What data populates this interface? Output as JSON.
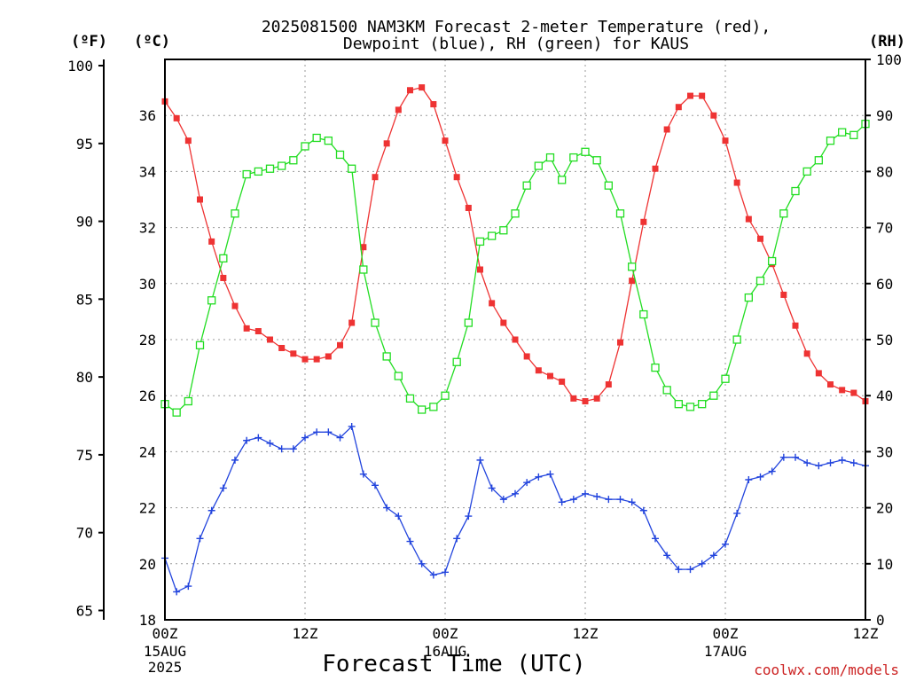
{
  "chart_data": {
    "type": "line",
    "title": "2025081500 NAM3KM Forecast 2-meter Temperature (red),",
    "subtitle": "Dewpoint (blue), RH (green) for KAUS",
    "xlabel": "Forecast Time (UTC)",
    "credit": "coolwx.com/models",
    "units": {
      "fahrenheit": "(ºF)",
      "celsius": "(ºC)",
      "rh": "(RH)"
    },
    "x_ticks": [
      {
        "h": 0,
        "label": "00Z",
        "date": "15AUG",
        "year": "2025"
      },
      {
        "h": 12,
        "label": "12Z",
        "date": "",
        "year": ""
      },
      {
        "h": 24,
        "label": "00Z",
        "date": "16AUG",
        "year": ""
      },
      {
        "h": 36,
        "label": "12Z",
        "date": "",
        "year": ""
      },
      {
        "h": 48,
        "label": "00Z",
        "date": "17AUG",
        "year": ""
      },
      {
        "h": 60,
        "label": "12Z",
        "date": "",
        "year": ""
      }
    ],
    "xlim": [
      0,
      60
    ],
    "celsius_ylim": [
      18,
      38
    ],
    "celsius_ticks": [
      "18",
      "20",
      "22",
      "24",
      "26",
      "28",
      "30",
      "32",
      "34",
      "36"
    ],
    "fahrenheit_ticks": [
      "65",
      "70",
      "75",
      "80",
      "85",
      "90",
      "95",
      "100"
    ],
    "rh_ylim": [
      0,
      100
    ],
    "rh_ticks": [
      "0",
      "10",
      "20",
      "30",
      "40",
      "50",
      "60",
      "70",
      "80",
      "90",
      "100"
    ],
    "grid": true,
    "colors": {
      "temperature": "#ee3333",
      "dewpoint": "#2244dd",
      "rh": "#22dd22"
    },
    "series": [
      {
        "key": "temperature",
        "axis": "celsius",
        "marker": "filled-square",
        "values": [
          36.5,
          35.9,
          35.1,
          33.0,
          31.5,
          30.2,
          29.2,
          28.4,
          28.3,
          28.0,
          27.7,
          27.5,
          27.3,
          27.3,
          27.4,
          27.8,
          28.6,
          31.3,
          33.8,
          35.0,
          36.2,
          36.9,
          37.0,
          36.4,
          35.1,
          33.8,
          32.7,
          30.5,
          29.3,
          28.6,
          28.0,
          27.4,
          26.9,
          26.7,
          26.5,
          25.9,
          25.8,
          25.9,
          26.4,
          27.9,
          30.1,
          32.2,
          34.1,
          35.5,
          36.3,
          36.7,
          36.7,
          36.0,
          35.1,
          33.6,
          32.3,
          31.6,
          30.7,
          29.6,
          28.5,
          27.5,
          26.8,
          26.4,
          26.2,
          26.1,
          25.8
        ]
      },
      {
        "key": "dewpoint",
        "axis": "celsius",
        "marker": "plus",
        "values": [
          20.2,
          19.0,
          19.2,
          20.9,
          21.9,
          22.7,
          23.7,
          24.4,
          24.5,
          24.3,
          24.1,
          24.1,
          24.5,
          24.7,
          24.7,
          24.5,
          24.9,
          23.2,
          22.8,
          22.0,
          21.7,
          20.8,
          20.0,
          19.6,
          19.7,
          20.9,
          21.7,
          23.7,
          22.7,
          22.3,
          22.5,
          22.9,
          23.1,
          23.2,
          22.2,
          22.3,
          22.5,
          22.4,
          22.3,
          22.3,
          22.2,
          21.9,
          20.9,
          20.3,
          19.8,
          19.8,
          20.0,
          20.3,
          20.7,
          21.8,
          23.0,
          23.1,
          23.3,
          23.8,
          23.8,
          23.6,
          23.5,
          23.6,
          23.7,
          23.6,
          23.5
        ]
      },
      {
        "key": "rh",
        "axis": "rh",
        "marker": "open-square",
        "values": [
          38.5,
          37.0,
          39.0,
          49.0,
          57.0,
          64.5,
          72.5,
          79.5,
          80.0,
          80.5,
          81.0,
          82.0,
          84.5,
          86.0,
          85.5,
          83.0,
          80.5,
          62.5,
          53.0,
          47.0,
          43.5,
          39.5,
          37.5,
          38.0,
          40.0,
          46.0,
          53.0,
          67.5,
          68.5,
          69.5,
          72.5,
          77.5,
          81.0,
          82.5,
          78.5,
          82.5,
          83.5,
          82.0,
          77.5,
          72.5,
          63.0,
          54.5,
          45.0,
          41.0,
          38.5,
          38.0,
          38.5,
          40.0,
          43.0,
          50.0,
          57.5,
          60.5,
          64.0,
          72.5,
          76.5,
          80.0,
          82.0,
          85.5,
          87.0,
          86.5,
          88.5
        ]
      }
    ]
  }
}
